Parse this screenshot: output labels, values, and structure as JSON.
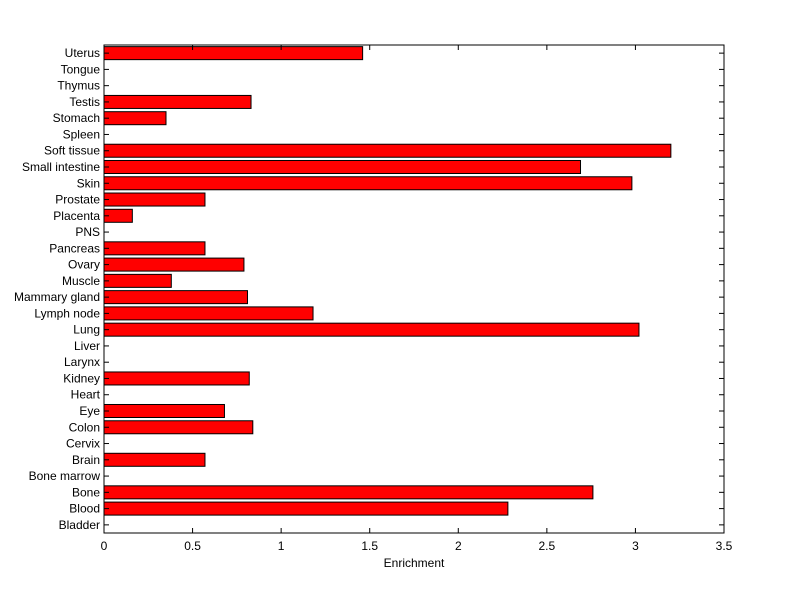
{
  "chart_data": {
    "type": "bar",
    "orientation": "horizontal",
    "categories": [
      "Uterus",
      "Tongue",
      "Thymus",
      "Testis",
      "Stomach",
      "Spleen",
      "Soft tissue",
      "Small intestine",
      "Skin",
      "Prostate",
      "Placenta",
      "PNS",
      "Pancreas",
      "Ovary",
      "Muscle",
      "Mammary gland",
      "Lymph node",
      "Lung",
      "Liver",
      "Larynx",
      "Kidney",
      "Heart",
      "Eye",
      "Colon",
      "Cervix",
      "Brain",
      "Bone marrow",
      "Bone",
      "Blood",
      "Bladder"
    ],
    "values": [
      1.46,
      0,
      0,
      0.83,
      0.35,
      0,
      3.2,
      2.69,
      2.98,
      0.57,
      0.16,
      0,
      0.57,
      0.79,
      0.38,
      0.81,
      1.18,
      3.02,
      0,
      0,
      0.82,
      0,
      0.68,
      0.84,
      0,
      0.57,
      0,
      2.76,
      2.28,
      0
    ],
    "xlabel": "Enrichment",
    "ylabel": "",
    "title": "",
    "xlim": [
      0,
      3.5
    ],
    "xticks": [
      "0",
      "0.5",
      "1",
      "1.5",
      "2",
      "2.5",
      "3",
      "3.5"
    ],
    "bar_color": "#ff0000",
    "grid": false
  }
}
